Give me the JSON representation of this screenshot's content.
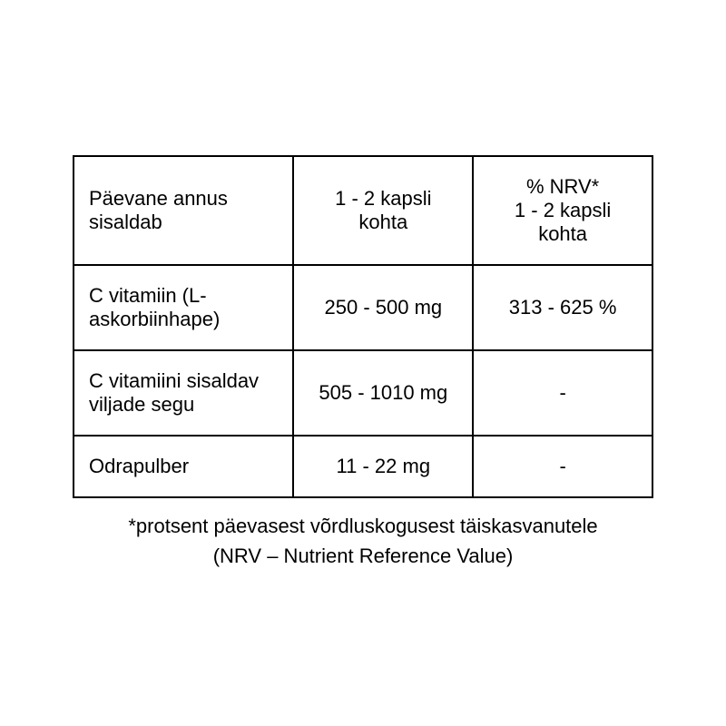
{
  "table": {
    "headers": {
      "col1": "Päevane annus sisaldab",
      "col2": "1 - 2 kapsli kohta",
      "col3_line1": "% NRV*",
      "col3_line2": "1 - 2 kapsli kohta"
    },
    "rows": [
      {
        "name": "C vitamiin (L-askorbiinhape)",
        "amount": "250 - 500 mg",
        "nrv": "313 - 625 %"
      },
      {
        "name": "C vitamiini sisaldav viljade segu",
        "amount": "505 - 1010 mg",
        "nrv": "-"
      },
      {
        "name": "Odrapulber",
        "amount": "11 - 22 mg",
        "nrv": "-"
      }
    ]
  },
  "footnote_line1": "*protsent päevasest võrdluskogusest täiskasvanutele",
  "footnote_line2": "(NRV – Nutrient Reference Value)"
}
